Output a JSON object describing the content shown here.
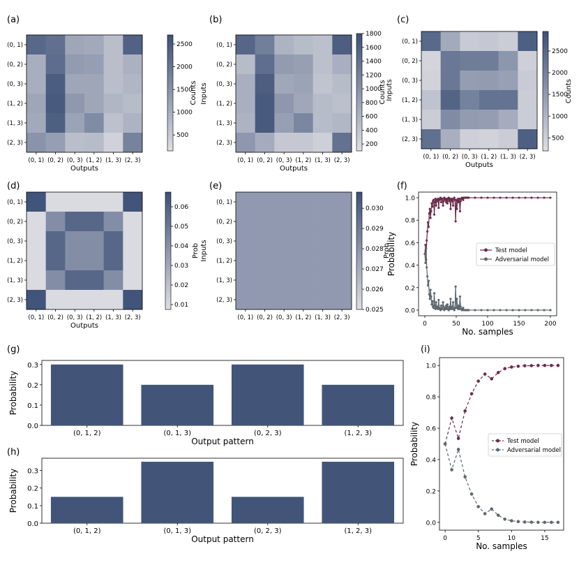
{
  "colors": {
    "cmap_low": "#dcdce2",
    "cmap_high": "#3f5278",
    "bar": "#425579",
    "test": "#6b2c4b",
    "adv": "#5e676f",
    "axis": "#000000"
  },
  "chart_data": [
    {
      "id": "a",
      "panel_label": "(a)",
      "type": "heatmap",
      "xlabel": "Outputs",
      "ylabel": "Inputs",
      "cbar_label": "Counts",
      "xticks": [
        "(0, 1)",
        "(0, 2)",
        "(0, 3)",
        "(1, 2)",
        "(1, 3)",
        "(2, 3)"
      ],
      "yticks": [
        "(0, 1)",
        "(0, 2)",
        "(0, 3)",
        "(1, 2)",
        "(1, 3)",
        "(2, 3)"
      ],
      "vmin": 150,
      "vmax": 2700,
      "cbar_ticks": [
        500,
        1000,
        1500,
        2000,
        2500
      ],
      "cbar_ticklabels": [
        "500",
        "1000",
        "1500",
        "2000",
        "2500"
      ],
      "z": [
        [
          2300,
          2150,
          1150,
          1100,
          700,
          2400
        ],
        [
          1000,
          2200,
          1350,
          1300,
          700,
          950
        ],
        [
          1000,
          2500,
          1150,
          1150,
          700,
          850
        ],
        [
          1150,
          2550,
          1400,
          1150,
          850,
          750
        ],
        [
          1100,
          2450,
          1200,
          1650,
          650,
          900
        ],
        [
          1500,
          1300,
          700,
          750,
          350,
          1800
        ]
      ]
    },
    {
      "id": "b",
      "panel_label": "(b)",
      "type": "heatmap",
      "xlabel": "Outputs",
      "ylabel": "Inputs",
      "cbar_label": "Counts",
      "xticks": [
        "(0, 1)",
        "(0, 2)",
        "(0, 3)",
        "(1, 2)",
        "(1, 3)",
        "(2, 3)"
      ],
      "yticks": [
        "(0, 1)",
        "(0, 2)",
        "(0, 3)",
        "(1, 2)",
        "(1, 3)",
        "(2, 3)"
      ],
      "vmin": 100,
      "vmax": 1800,
      "cbar_ticks": [
        200,
        400,
        600,
        800,
        1000,
        1200,
        1400,
        1600,
        1800
      ],
      "cbar_ticklabels": [
        "200",
        "400",
        "600",
        "800",
        "1000",
        "1200",
        "1400",
        "1600",
        "1800"
      ],
      "z": [
        [
          1550,
          1250,
          600,
          500,
          450,
          1650
        ],
        [
          500,
          1450,
          900,
          850,
          450,
          650
        ],
        [
          650,
          1650,
          750,
          800,
          400,
          500
        ],
        [
          650,
          1700,
          950,
          750,
          500,
          450
        ],
        [
          600,
          1700,
          850,
          1150,
          500,
          550
        ],
        [
          950,
          700,
          350,
          350,
          250,
          1400
        ]
      ]
    },
    {
      "id": "c",
      "panel_label": "(c)",
      "type": "heatmap",
      "xlabel": "Outputs",
      "ylabel": "Inputs",
      "cbar_label": "Counts",
      "xticks": [
        "(0, 1)",
        "(0, 2)",
        "(0, 3)",
        "(1, 2)",
        "(1, 3)",
        "(2, 3)"
      ],
      "yticks": [
        "(0, 1)",
        "(0, 2)",
        "(0, 3)",
        "(1, 2)",
        "(1, 3)",
        "(2, 3)"
      ],
      "vmin": 200,
      "vmax": 2950,
      "cbar_ticks": [
        500,
        1000,
        1500,
        2000,
        2500
      ],
      "cbar_ticklabels": [
        "500",
        "1000",
        "1500",
        "2000",
        "2500"
      ],
      "z": [
        [
          2500,
          1200,
          550,
          600,
          500,
          2700
        ],
        [
          350,
          2200,
          2100,
          2100,
          1600,
          450
        ],
        [
          400,
          2200,
          1450,
          1500,
          1400,
          550
        ],
        [
          700,
          2600,
          2000,
          2300,
          2300,
          500
        ],
        [
          500,
          1800,
          1500,
          1450,
          1150,
          500
        ],
        [
          2350,
          1100,
          450,
          400,
          500,
          2700
        ]
      ]
    },
    {
      "id": "d",
      "panel_label": "(d)",
      "type": "heatmap",
      "xlabel": "Outputs",
      "ylabel": "Inputs",
      "cbar_label": "Prob",
      "xticks": [
        "(0, 1)",
        "(0, 2)",
        "(0, 3)",
        "(1, 2)",
        "(1, 3)",
        "(2, 3)"
      ],
      "yticks": [
        "(0, 1)",
        "(0, 2)",
        "(0, 3)",
        "(1, 2)",
        "(1, 3)",
        "(2, 3)"
      ],
      "vmin": 0.0075,
      "vmax": 0.0675,
      "cbar_ticks": [
        0.01,
        0.02,
        0.03,
        0.04,
        0.05,
        0.06
      ],
      "cbar_ticklabels": [
        "0.01",
        "0.02",
        "0.03",
        "0.04",
        "0.05",
        "0.06"
      ],
      "z": [
        [
          0.0667,
          0.0083,
          0.0083,
          0.0083,
          0.0083,
          0.0667
        ],
        [
          0.0083,
          0.0417,
          0.0583,
          0.0583,
          0.0417,
          0.0083
        ],
        [
          0.0083,
          0.0583,
          0.0417,
          0.0417,
          0.0583,
          0.0083
        ],
        [
          0.0083,
          0.0583,
          0.0417,
          0.0417,
          0.0583,
          0.0083
        ],
        [
          0.0083,
          0.0417,
          0.0583,
          0.0583,
          0.0417,
          0.0083
        ],
        [
          0.0667,
          0.0083,
          0.0083,
          0.0083,
          0.0083,
          0.0667
        ]
      ]
    },
    {
      "id": "e",
      "panel_label": "(e)",
      "type": "heatmap",
      "xlabel": "",
      "ylabel": "Inputs",
      "cbar_label": "Prob",
      "xticks": [
        "(0, 1)",
        "(0, 2)",
        "(0, 3)",
        "(1, 2)",
        "(1, 3)",
        "(2, 3)"
      ],
      "yticks": [
        "(0, 1)",
        "(0, 2)",
        "(0, 3)",
        "(1, 2)",
        "(1, 3)",
        "(2, 3)"
      ],
      "vmin": 0.025,
      "vmax": 0.0308,
      "cbar_ticks": [
        0.025,
        0.026,
        0.027,
        0.028,
        0.029,
        0.03
      ],
      "cbar_ticklabels": [
        "0.025",
        "0.026",
        "0.027",
        "0.028",
        "0.029",
        "0.030"
      ],
      "z": [
        [
          0.0278,
          0.0278,
          0.0278,
          0.0278,
          0.0278,
          0.0278
        ],
        [
          0.0278,
          0.0278,
          0.0278,
          0.0278,
          0.0278,
          0.0278
        ],
        [
          0.0278,
          0.0278,
          0.0278,
          0.0278,
          0.0278,
          0.0278
        ],
        [
          0.0278,
          0.0278,
          0.0278,
          0.0278,
          0.0278,
          0.0278
        ],
        [
          0.0278,
          0.0278,
          0.0278,
          0.0278,
          0.0278,
          0.0278
        ],
        [
          0.0278,
          0.0278,
          0.0278,
          0.0278,
          0.0278,
          0.0278
        ]
      ]
    },
    {
      "id": "f",
      "panel_label": "(f)",
      "type": "line",
      "xlabel": "No. samples",
      "ylabel": "Probability",
      "xlim": [
        -10,
        210
      ],
      "ylim": [
        -0.05,
        1.05
      ],
      "xticks": [
        0,
        50,
        100,
        150,
        200
      ],
      "xticklabels": [
        "0",
        "50",
        "100",
        "150",
        "200"
      ],
      "yticks": [
        0.0,
        0.2,
        0.4,
        0.6,
        0.8,
        1.0
      ],
      "yticklabels": [
        "0.0",
        "0.2",
        "0.4",
        "0.6",
        "0.8",
        "1.0"
      ],
      "legend": [
        "Test model",
        "Adversarial model"
      ],
      "series": [
        {
          "name": "Test model",
          "color": "test",
          "style": "solid",
          "x": [
            0,
            1,
            2,
            3,
            4,
            5,
            6,
            7,
            8,
            9,
            10,
            11,
            12,
            13,
            14,
            15,
            16,
            17,
            18,
            19,
            20,
            21,
            22,
            23,
            24,
            25,
            26,
            27,
            28,
            29,
            30,
            31,
            32,
            33,
            34,
            35,
            36,
            37,
            38,
            39,
            40,
            41,
            42,
            43,
            44,
            45,
            46,
            47,
            48,
            49,
            50,
            51,
            52,
            53,
            54,
            55,
            56,
            57,
            58,
            59,
            60,
            61,
            62,
            63,
            64,
            65,
            66,
            67,
            68,
            69,
            70,
            80,
            90,
            100,
            110,
            120,
            130,
            140,
            150,
            160,
            170,
            180,
            190,
            200
          ],
          "y": [
            0.5,
            0.58,
            0.45,
            0.62,
            0.7,
            0.78,
            0.74,
            0.86,
            0.9,
            0.82,
            0.88,
            0.95,
            0.92,
            0.97,
            0.98,
            0.85,
            0.96,
            0.99,
            0.93,
            0.98,
            0.97,
            0.99,
            0.91,
            0.98,
            0.99,
            1.0,
            0.96,
            0.99,
            0.99,
            0.93,
            0.97,
            1.0,
            0.99,
            0.98,
            0.96,
            0.99,
            0.95,
            0.99,
            1.0,
            0.97,
            0.99,
            0.9,
            0.98,
            0.99,
            0.97,
            0.93,
            0.99,
            1.0,
            0.98,
            0.79,
            0.98,
            0.9,
            0.97,
            0.99,
            0.96,
            0.99,
            0.88,
            0.97,
            0.99,
            1.0,
            0.99,
            0.98,
            1.0,
            1.0,
            1.0,
            1.0,
            1.0,
            1.0,
            1.0,
            1.0,
            1.0,
            1.0,
            1.0,
            1.0,
            1.0,
            1.0,
            1.0,
            1.0,
            1.0,
            1.0,
            1.0,
            1.0,
            1.0,
            1.0
          ]
        },
        {
          "name": "Adversarial model",
          "color": "adv",
          "style": "solid",
          "x": [
            0,
            1,
            2,
            3,
            4,
            5,
            6,
            7,
            8,
            9,
            10,
            11,
            12,
            13,
            14,
            15,
            16,
            17,
            18,
            19,
            20,
            21,
            22,
            23,
            24,
            25,
            26,
            27,
            28,
            29,
            30,
            31,
            32,
            33,
            34,
            35,
            36,
            37,
            38,
            39,
            40,
            41,
            42,
            43,
            44,
            45,
            46,
            47,
            48,
            49,
            50,
            51,
            52,
            53,
            54,
            55,
            56,
            57,
            58,
            59,
            60,
            61,
            62,
            63,
            64,
            65,
            66,
            67,
            68,
            69,
            70,
            80,
            90,
            100,
            110,
            120,
            130,
            140,
            150,
            160,
            170,
            180,
            190,
            200
          ],
          "y": [
            0.5,
            0.42,
            0.55,
            0.38,
            0.3,
            0.22,
            0.26,
            0.14,
            0.1,
            0.18,
            0.12,
            0.05,
            0.08,
            0.03,
            0.02,
            0.15,
            0.04,
            0.01,
            0.07,
            0.02,
            0.03,
            0.01,
            0.09,
            0.02,
            0.01,
            0.0,
            0.04,
            0.01,
            0.01,
            0.07,
            0.03,
            0.0,
            0.01,
            0.02,
            0.04,
            0.01,
            0.05,
            0.01,
            0.0,
            0.03,
            0.01,
            0.1,
            0.02,
            0.01,
            0.03,
            0.07,
            0.01,
            0.0,
            0.02,
            0.21,
            0.02,
            0.1,
            0.03,
            0.01,
            0.04,
            0.01,
            0.12,
            0.03,
            0.01,
            0.0,
            0.01,
            0.02,
            0.0,
            0.0,
            0.0,
            0.0,
            0.0,
            0.0,
            0.0,
            0.0,
            0.0,
            0.0,
            0.0,
            0.0,
            0.0,
            0.0,
            0.0,
            0.0,
            0.0,
            0.0,
            0.0,
            0.0,
            0.0,
            0.0
          ]
        }
      ]
    },
    {
      "id": "g",
      "panel_label": "(g)",
      "type": "bar",
      "xlabel": "Output pattern",
      "ylabel": "Probability",
      "categories": [
        "(0, 1, 2)",
        "(0, 1, 3)",
        "(0, 2, 3)",
        "(1, 2, 3)"
      ],
      "values": [
        0.3,
        0.2,
        0.3,
        0.2
      ],
      "ylim": [
        0,
        0.32
      ],
      "yticks": [
        0.0,
        0.1,
        0.2,
        0.3
      ],
      "yticklabels": [
        "0.0",
        "0.1",
        "0.2",
        "0.3"
      ]
    },
    {
      "id": "h",
      "panel_label": "(h)",
      "type": "bar",
      "xlabel": "Output pattern",
      "ylabel": "Probability",
      "categories": [
        "(0, 1, 2)",
        "(0, 1, 3)",
        "(0, 2, 3)",
        "(1, 2, 3)"
      ],
      "values": [
        0.15,
        0.35,
        0.15,
        0.35
      ],
      "ylim": [
        0,
        0.37
      ],
      "yticks": [
        0.0,
        0.1,
        0.2,
        0.3
      ],
      "yticklabels": [
        "0.0",
        "0.1",
        "0.2",
        "0.3"
      ]
    },
    {
      "id": "i",
      "panel_label": "(i)",
      "type": "line",
      "xlabel": "No. samples",
      "ylabel": "Probability",
      "xlim": [
        -0.85,
        17.85
      ],
      "ylim": [
        -0.05,
        1.05
      ],
      "xticks": [
        0,
        5,
        10,
        15
      ],
      "xticklabels": [
        "0",
        "5",
        "10",
        "15"
      ],
      "yticks": [
        0.0,
        0.2,
        0.4,
        0.6,
        0.8,
        1.0
      ],
      "yticklabels": [
        "0.0",
        "0.2",
        "0.4",
        "0.6",
        "0.8",
        "1.0"
      ],
      "legend": [
        "Test model",
        "Adversarial model"
      ],
      "series": [
        {
          "name": "Test model",
          "color": "test",
          "style": "dashed",
          "x": [
            0,
            1,
            2,
            3,
            4,
            5,
            6,
            7,
            8,
            9,
            10,
            11,
            12,
            13,
            14,
            15,
            16,
            17
          ],
          "y": [
            0.5,
            0.665,
            0.535,
            0.71,
            0.82,
            0.9,
            0.945,
            0.915,
            0.955,
            0.98,
            0.99,
            0.995,
            0.998,
            0.999,
            1.0,
            1.0,
            1.0,
            1.0
          ]
        },
        {
          "name": "Adversarial model",
          "color": "adv",
          "style": "dashed",
          "x": [
            0,
            1,
            2,
            3,
            4,
            5,
            6,
            7,
            8,
            9,
            10,
            11,
            12,
            13,
            14,
            15,
            16,
            17
          ],
          "y": [
            0.5,
            0.335,
            0.465,
            0.29,
            0.18,
            0.1,
            0.055,
            0.085,
            0.045,
            0.02,
            0.01,
            0.005,
            0.002,
            0.001,
            0.0,
            0.0,
            0.0,
            0.0
          ]
        }
      ]
    }
  ]
}
